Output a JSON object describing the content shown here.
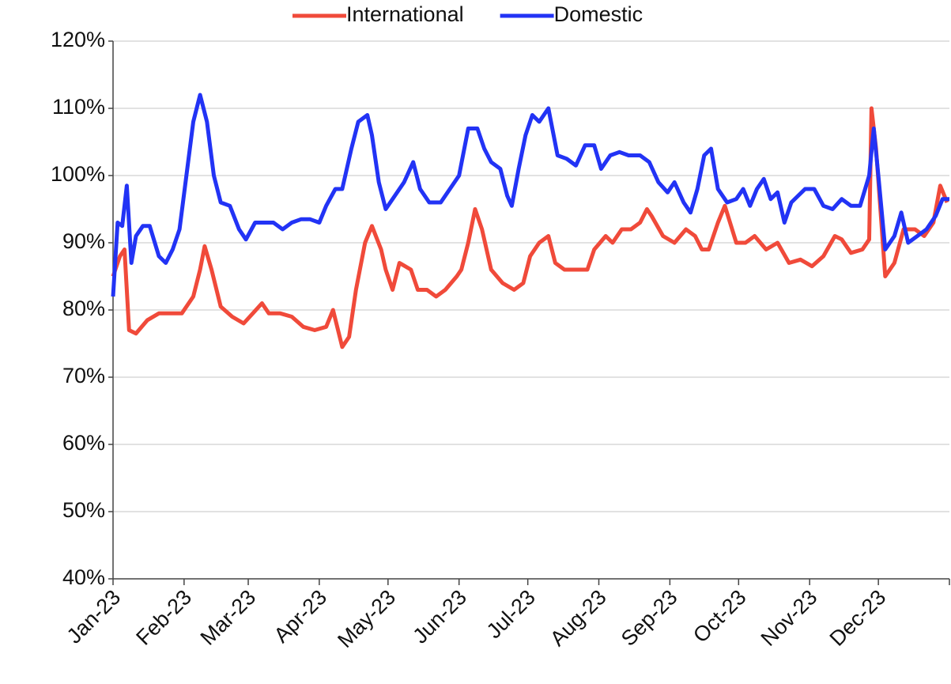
{
  "chart_data": {
    "type": "line",
    "xlim": [
      0,
      365
    ],
    "xticks": [
      {
        "value": 0,
        "label": "Jan-23"
      },
      {
        "value": 31,
        "label": "Feb-23"
      },
      {
        "value": 59,
        "label": "Mar-23"
      },
      {
        "value": 90,
        "label": "Apr-23"
      },
      {
        "value": 120,
        "label": "May-23"
      },
      {
        "value": 151,
        "label": "Jun-23"
      },
      {
        "value": 181,
        "label": "Jul-23"
      },
      {
        "value": 212,
        "label": "Aug-23"
      },
      {
        "value": 243,
        "label": "Sep-23"
      },
      {
        "value": 273,
        "label": "Oct-23"
      },
      {
        "value": 304,
        "label": "Nov-23"
      },
      {
        "value": 334,
        "label": "Dec-23"
      },
      {
        "value": 365,
        "label": ""
      }
    ],
    "ylim": [
      40,
      120
    ],
    "yticks": [
      {
        "value": 40,
        "label": "40%"
      },
      {
        "value": 50,
        "label": "50%"
      },
      {
        "value": 60,
        "label": "60%"
      },
      {
        "value": 70,
        "label": "70%"
      },
      {
        "value": 80,
        "label": "80%"
      },
      {
        "value": 90,
        "label": "90%"
      },
      {
        "value": 100,
        "label": "100%"
      },
      {
        "value": 110,
        "label": "110%"
      },
      {
        "value": 120,
        "label": "120%"
      }
    ],
    "grid": true,
    "legend": "top",
    "series": [
      {
        "name": "International",
        "color": "#f04a3a",
        "x": [
          0,
          3,
          5,
          7,
          10,
          15,
          20,
          25,
          30,
          35,
          38,
          40,
          43,
          47,
          52,
          57,
          61,
          65,
          68,
          73,
          78,
          83,
          88,
          93,
          96,
          100,
          103,
          106,
          110,
          113,
          117,
          119,
          122,
          125,
          130,
          133,
          137,
          141,
          145,
          150,
          152,
          155,
          158,
          161,
          165,
          170,
          175,
          179,
          182,
          186,
          190,
          193,
          197,
          202,
          207,
          210,
          215,
          218,
          222,
          226,
          230,
          233,
          235,
          240,
          245,
          250,
          254,
          257,
          260,
          264,
          267,
          272,
          276,
          280,
          285,
          290,
          295,
          300,
          305,
          310,
          315,
          318,
          322,
          327,
          330,
          331,
          333,
          337,
          341,
          345,
          350,
          354,
          358,
          361,
          364
        ],
        "values": [
          85,
          88,
          89,
          77,
          76.5,
          78.5,
          79.5,
          79.5,
          79.5,
          82,
          86,
          89.5,
          86,
          80.5,
          79,
          78,
          79.5,
          81,
          79.5,
          79.5,
          79,
          77.5,
          77,
          77.5,
          80,
          74.5,
          76,
          83,
          90,
          92.5,
          89,
          86,
          83,
          87,
          86,
          83,
          83,
          82,
          83,
          85,
          86,
          90,
          95,
          92,
          86,
          84,
          83,
          84,
          88,
          90,
          91,
          87,
          86,
          86,
          86,
          89,
          91,
          90,
          92,
          92,
          93,
          95,
          94,
          91,
          90,
          92,
          91,
          89,
          89,
          93,
          95.5,
          90,
          90,
          91,
          89,
          90,
          87,
          87.5,
          86.5,
          88,
          91,
          90.5,
          88.5,
          89,
          90.5,
          110,
          104,
          85,
          87,
          92,
          92,
          91,
          93,
          98.5,
          96
        ]
      },
      {
        "name": "Domestic",
        "color": "#2233f5",
        "x": [
          0,
          2,
          4,
          6,
          8,
          10,
          13,
          16,
          20,
          23,
          26,
          29,
          32,
          35,
          38,
          41,
          44,
          47,
          51,
          55,
          58,
          62,
          66,
          70,
          74,
          78,
          82,
          86,
          90,
          93,
          97,
          100,
          104,
          107,
          111,
          113,
          116,
          119,
          123,
          127,
          131,
          134,
          138,
          143,
          147,
          151,
          155,
          159,
          162,
          165,
          169,
          172,
          174,
          177,
          180,
          183,
          186,
          190,
          194,
          198,
          202,
          206,
          210,
          213,
          217,
          221,
          225,
          230,
          234,
          238,
          242,
          245,
          249,
          252,
          255,
          258,
          261,
          264,
          268,
          272,
          275,
          278,
          281,
          284,
          287,
          290,
          293,
          296,
          299,
          302,
          306,
          310,
          314,
          318,
          322,
          326,
          330,
          332,
          334,
          337,
          341,
          344,
          347,
          351,
          355,
          359,
          362,
          365
        ],
        "values": [
          82,
          93,
          92.5,
          98.5,
          87,
          91,
          92.5,
          92.5,
          88,
          87,
          89,
          92,
          100,
          108,
          112,
          108,
          100,
          96,
          95.5,
          92,
          90.5,
          93,
          93,
          93,
          92,
          93,
          93.5,
          93.5,
          93,
          95.5,
          98,
          98,
          104,
          108,
          109,
          106,
          99,
          95,
          97,
          99,
          102,
          98,
          96,
          96,
          98,
          100,
          107,
          107,
          104,
          102,
          101,
          97,
          95.5,
          101,
          106,
          109,
          108,
          110,
          103,
          102.5,
          101.5,
          104.5,
          104.5,
          101,
          103,
          103.5,
          103,
          103,
          102,
          99,
          97.5,
          99,
          96,
          94.5,
          98,
          103,
          104,
          98,
          96,
          96.5,
          98,
          95.5,
          98,
          99.5,
          96.5,
          97.5,
          93,
          96,
          97,
          98,
          98,
          95.5,
          95,
          96.5,
          95.5,
          95.5,
          100,
          107,
          100,
          89,
          91,
          94.5,
          90,
          91,
          92,
          94,
          96.5,
          96.5
        ]
      }
    ]
  }
}
